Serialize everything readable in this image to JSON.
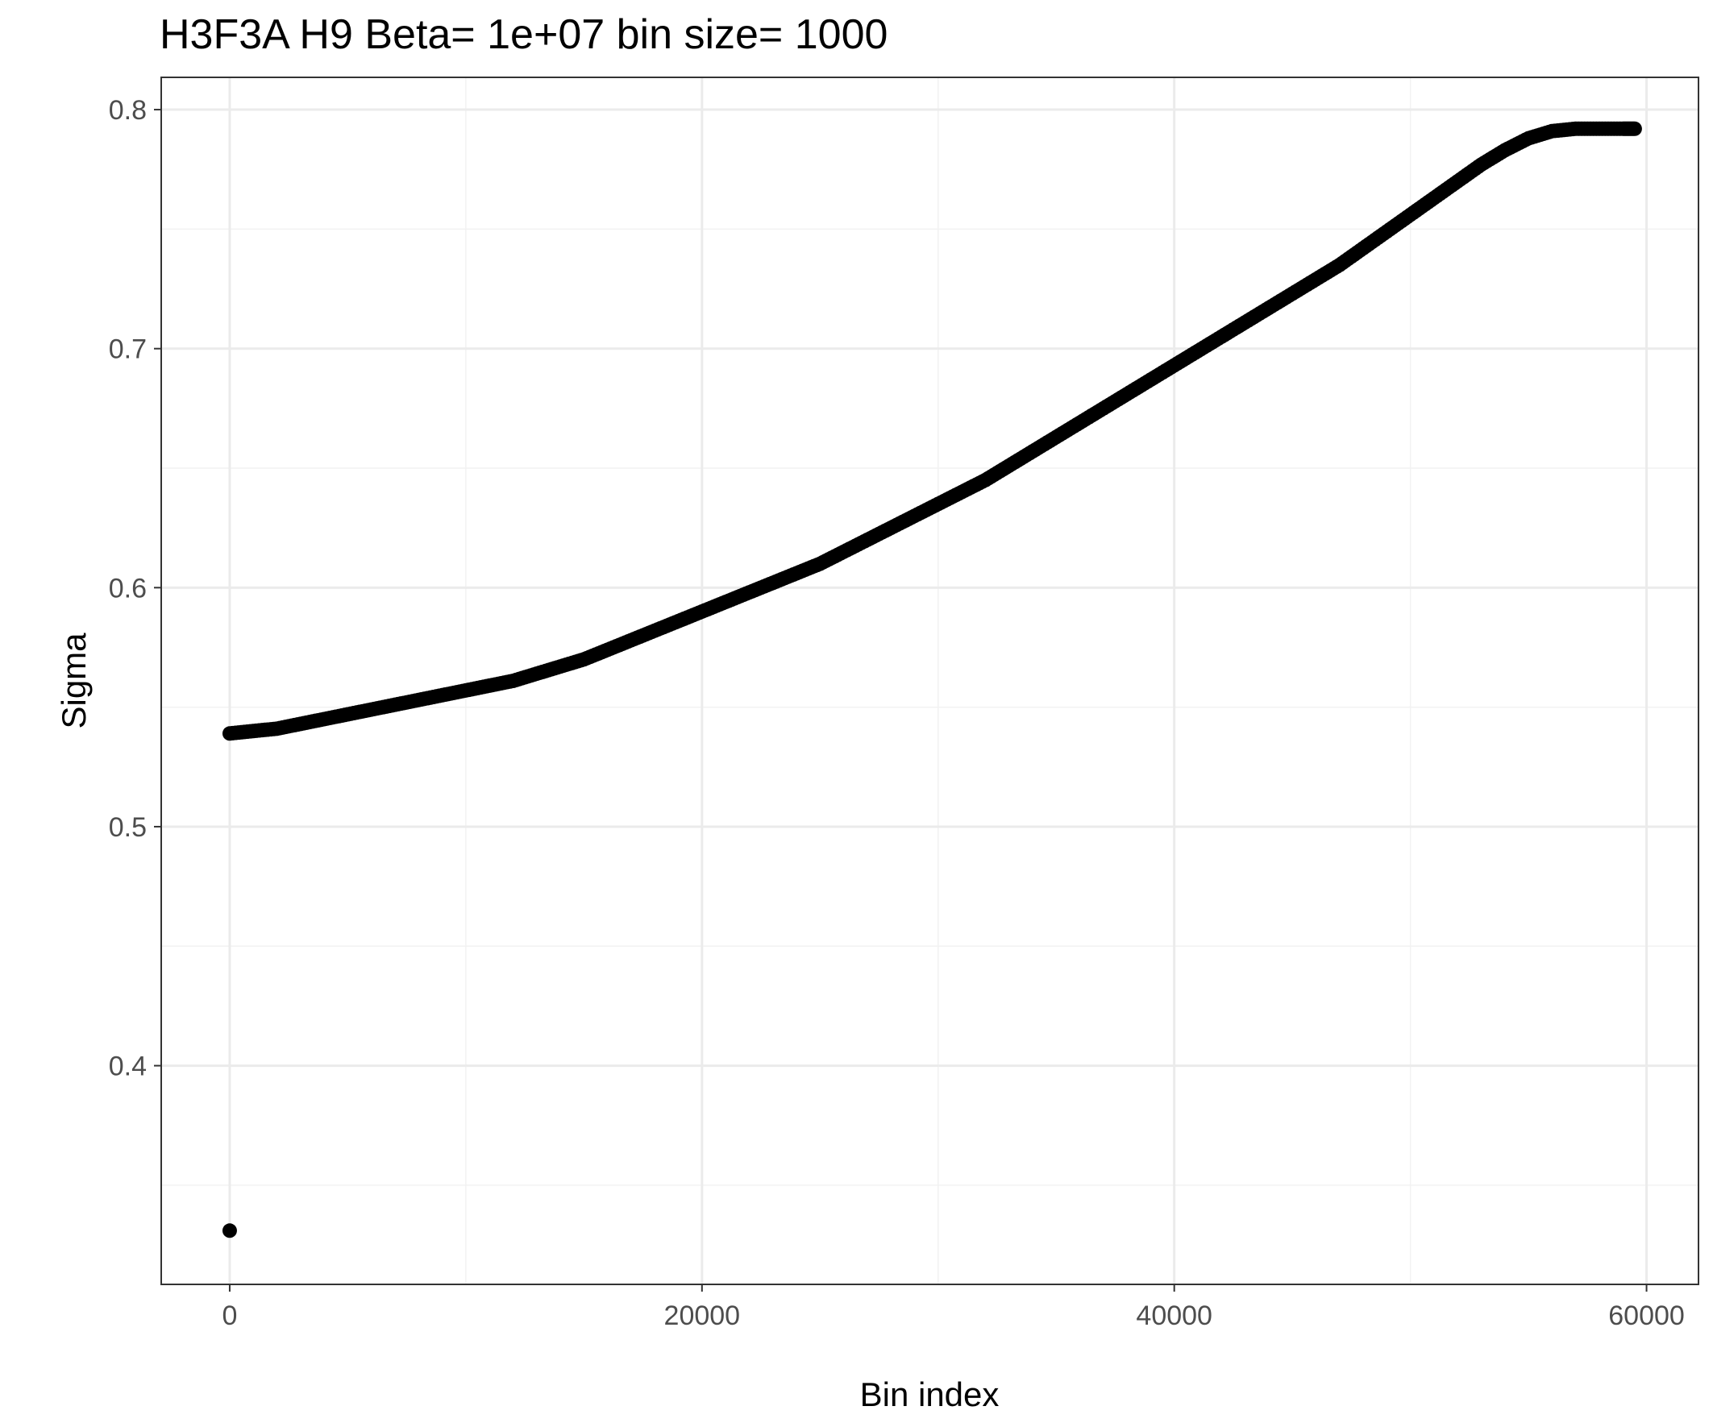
{
  "chart_data": {
    "type": "scatter",
    "title": "H3F3A H9  Beta=  1e+07  bin size=  1000",
    "xlabel": "Bin index",
    "ylabel": "Sigma",
    "xlim": [
      -2900,
      62200
    ],
    "ylim": [
      0.3085,
      0.8135
    ],
    "xticks": [
      0,
      20000,
      40000,
      60000
    ],
    "xtick_labels": [
      "0",
      "20000",
      "40000",
      "60000"
    ],
    "x_minor_ticks": [
      10000,
      30000,
      50000
    ],
    "yticks": [
      0.4,
      0.5,
      0.6,
      0.7,
      0.8
    ],
    "ytick_labels": [
      "0.4",
      "0.5",
      "0.6",
      "0.7",
      "0.8"
    ],
    "y_minor_ticks": [
      0.35,
      0.45,
      0.55,
      0.65,
      0.75
    ],
    "grid": true,
    "legend": "none",
    "point_color": "#000000",
    "series": [
      {
        "x": [
          0,
          1000,
          2000,
          3000,
          4000,
          5000,
          6000,
          7000,
          8000,
          9000,
          10000,
          11000,
          12000,
          13000,
          14000,
          15000,
          16000,
          17000,
          18000,
          19000,
          20000,
          21000,
          22000,
          23000,
          24000,
          25000,
          26000,
          27000,
          28000,
          29000,
          30000,
          31000,
          32000,
          33000,
          34000,
          35000,
          36000,
          37000,
          38000,
          39000,
          40000,
          41000,
          42000,
          43000,
          44000,
          45000,
          46000,
          47000,
          48000,
          49000,
          50000,
          51000,
          52000,
          53000,
          54000,
          55000,
          56000,
          57000,
          58000,
          59000,
          59500
        ],
        "y": [
          0.539,
          0.54,
          0.541,
          0.543,
          0.545,
          0.547,
          0.549,
          0.551,
          0.553,
          0.555,
          0.557,
          0.559,
          0.561,
          0.564,
          0.567,
          0.57,
          0.574,
          0.578,
          0.582,
          0.586,
          0.59,
          0.594,
          0.598,
          0.602,
          0.606,
          0.61,
          0.615,
          0.62,
          0.625,
          0.63,
          0.635,
          0.64,
          0.645,
          0.651,
          0.657,
          0.663,
          0.669,
          0.675,
          0.681,
          0.687,
          0.693,
          0.699,
          0.705,
          0.711,
          0.717,
          0.723,
          0.729,
          0.735,
          0.742,
          0.749,
          0.756,
          0.763,
          0.77,
          0.777,
          0.783,
          0.788,
          0.791,
          0.792,
          0.792,
          0.792,
          0.792
        ]
      },
      {
        "x": [
          0
        ],
        "y": [
          0.331
        ]
      }
    ]
  }
}
